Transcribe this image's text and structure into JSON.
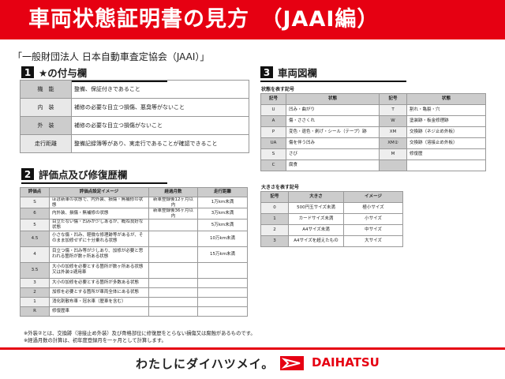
{
  "title": "車両状態証明書の見方　（JAAI編）",
  "organization": "「一般財団法人 日本自動車査定協会（JAAI）」",
  "section1": {
    "num": "1",
    "title": "★の付与欄",
    "rows": [
      {
        "label": "機　能",
        "text": "整備、保証付きであること"
      },
      {
        "label": "内　装",
        "text": "補修の必要な目立つ損傷、悪臭等がないこと"
      },
      {
        "label": "外　装",
        "text": "補修の必要な目立つ損傷がないこと"
      },
      {
        "label": "走行距離",
        "text": "整備記録簿等があり、実走行であることが確認できること"
      }
    ]
  },
  "section2": {
    "num": "2",
    "title": "評価点及び修復歴欄",
    "headers": [
      "評価点",
      "評価点設定イメージ",
      "経過月数",
      "走行距離"
    ],
    "rows": [
      [
        "S",
        "ほぼ新車の状態で、内外装、損傷・無補修の状態",
        "新車登録後12ヶ月以内",
        "1万km未満"
      ],
      [
        "6",
        "内外装、損傷・無補修の状態",
        "新車登録後36ヶ月以内",
        "3万km未満"
      ],
      [
        "5",
        "目立たない傷・凹みが少しあるが、概ね良好な状態",
        "",
        "5万km未満"
      ],
      [
        "4.5",
        "小さな傷・凹み、軽微な修理跡等があるが、そのまま加修せずに十分乗れる状態",
        "",
        "10万km未満"
      ],
      [
        "4",
        "目立つ傷・凹み等が少しあり、加修が必要と思われる箇所が数ヶ所ある状態",
        "",
        "15万km未満"
      ],
      [
        "3.5",
        "大小の加修を必要とする箇所が数ヶ所ある状態又は外装②適用車",
        "",
        ""
      ],
      [
        "3",
        "大小の加修を必要とする箇所が多数ある状態",
        "",
        ""
      ],
      [
        "2",
        "加修を必要とする箇所が車両全体にある状態",
        "",
        ""
      ],
      [
        "1",
        "消化剤散布車・冠水車（歴車を含む）",
        "",
        ""
      ],
      [
        "R",
        "修復歴車",
        "",
        ""
      ]
    ]
  },
  "notes": [
    "※外装②とは、交換跡（溶接止め外装）及び骨格部位に修復歴をとらない損傷又は腐蝕があるものです。",
    "※経過月数の計算は、初年度登録月を一ヶ月として計算します。"
  ],
  "section3": {
    "num": "3",
    "title": "車両図欄",
    "condition_subtitle": "状態を表す記号",
    "condition_headers": [
      "記号",
      "状態",
      "記号",
      "状態"
    ],
    "condition_rows": [
      [
        "U",
        "凹み・曲がり",
        "T",
        "割れ・亀裂・穴"
      ],
      [
        "A",
        "傷・ささくれ",
        "W",
        "塗装跡・板金修理跡"
      ],
      [
        "P",
        "変色・退色・剥げ・シール（テープ）跡",
        "XM",
        "交換跡（ネジ止め外板）"
      ],
      [
        "UA",
        "傷を伴う凹み",
        "XM②",
        "交換跡（溶接止め外板）"
      ],
      [
        "S",
        "さび",
        "M",
        "修復歴"
      ],
      [
        "C",
        "腐食",
        "",
        ""
      ]
    ],
    "size_subtitle": "大きさを表す記号",
    "size_headers": [
      "記号",
      "大きさ",
      "イメージ"
    ],
    "size_rows": [
      [
        "0",
        "500円玉サイズ未満",
        "極小サイズ"
      ],
      [
        "1",
        "カードサイズ未満",
        "小サイズ"
      ],
      [
        "2",
        "A4サイズ未満",
        "中サイズ"
      ],
      [
        "3",
        "A4サイズを超えたもの",
        "大サイズ"
      ]
    ]
  },
  "footer": {
    "slogan": "わたしにダイハツメイ。",
    "brand": "DAIHATSU",
    "logo_icon": "daihatsu-logo-icon"
  },
  "colors": {
    "accent": "#e60012"
  }
}
